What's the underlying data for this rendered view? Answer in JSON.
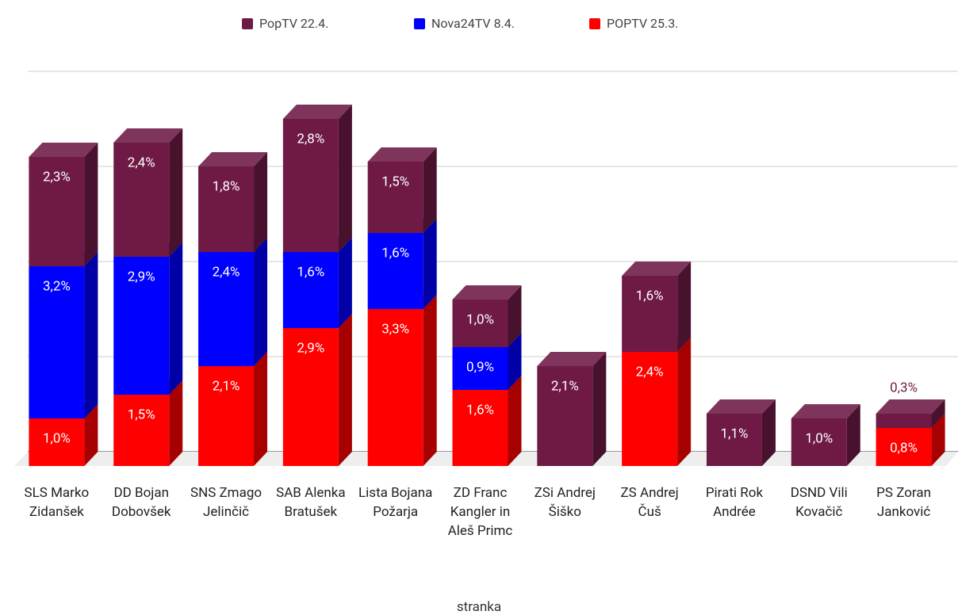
{
  "chart_data": {
    "type": "bar",
    "stacked": true,
    "x_label": "stranka",
    "categories": [
      "SLS Marko Zidanšek",
      "DD Bojan Dobovšek",
      "SNS Zmago Jelinčič",
      "SAB Alenka Bratušek",
      "Lista Bojana Požarja",
      "ZD Franc Kangler in Aleš Primc",
      "ZSi Andrej Šiško",
      "ZS Andrej Čuš",
      "Pirati Rok Andrée",
      "DSND Vili Kovačič",
      "PS Zoran Janković"
    ],
    "series": [
      {
        "name": "PopTV 22.4.",
        "color": "#6e1a45",
        "values": [
          2.3,
          2.4,
          1.8,
          2.8,
          1.5,
          1.0,
          2.1,
          1.6,
          1.1,
          1.0,
          0.3
        ],
        "value_labels": [
          "2,3%",
          "2,4%",
          "1,8%",
          "2,8%",
          "1,5%",
          "1,0%",
          "2,1%",
          "1,6%",
          "1,1%",
          "1,0%",
          "0,3%"
        ]
      },
      {
        "name": "Nova24TV 8.4.",
        "color": "#0000ff",
        "values": [
          3.2,
          2.9,
          2.4,
          1.6,
          1.6,
          0.9,
          null,
          null,
          null,
          null,
          null
        ],
        "value_labels": [
          "3,2%",
          "2,9%",
          "2,4%",
          "1,6%",
          "1,6%",
          "0,9%",
          null,
          null,
          null,
          null,
          null
        ]
      },
      {
        "name": "POPTV 25.3.",
        "color": "#ff0000",
        "values": [
          1.0,
          1.5,
          2.1,
          2.9,
          3.3,
          1.6,
          null,
          2.4,
          null,
          null,
          0.8
        ],
        "value_labels": [
          "1,0%",
          "1,5%",
          "2,1%",
          "2,9%",
          "3,3%",
          "1,6%",
          null,
          "2,4%",
          null,
          null,
          "0,8%"
        ]
      }
    ],
    "ylim": [
      0,
      8
    ],
    "yticks": [
      0,
      2,
      4,
      6,
      8
    ],
    "grid": true,
    "legend": "top"
  }
}
